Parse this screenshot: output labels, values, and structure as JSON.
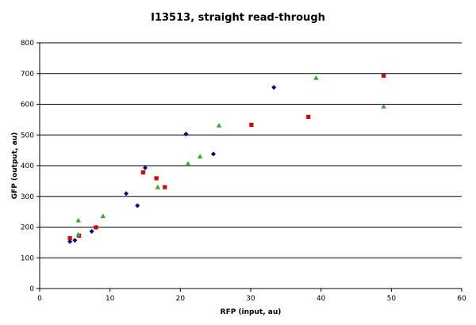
{
  "chart_data": {
    "type": "scatter",
    "title": "I13513, straight read-through",
    "xlabel": "RFP (input, au)",
    "ylabel": "GFP (output, au)",
    "xlim": [
      0,
      60
    ],
    "ylim": [
      0,
      800
    ],
    "xticks": [
      0,
      10,
      20,
      30,
      40,
      50,
      60
    ],
    "yticks": [
      0,
      100,
      200,
      300,
      400,
      500,
      600,
      700,
      800
    ],
    "grid": "horizontal",
    "legend": "none",
    "series": [
      {
        "marker": "diamond",
        "color": "#000080",
        "points": [
          [
            4.3,
            153
          ],
          [
            5.0,
            157
          ],
          [
            7.4,
            186
          ],
          [
            12.3,
            309
          ],
          [
            13.9,
            270
          ],
          [
            15.0,
            393
          ],
          [
            20.8,
            503
          ],
          [
            24.7,
            438
          ],
          [
            33.3,
            655
          ]
        ]
      },
      {
        "marker": "square",
        "color": "#dd0000",
        "points": [
          [
            4.3,
            164
          ],
          [
            5.6,
            172
          ],
          [
            8.0,
            199
          ],
          [
            14.7,
            378
          ],
          [
            16.6,
            359
          ],
          [
            17.8,
            330
          ],
          [
            30.1,
            533
          ],
          [
            38.2,
            559
          ],
          [
            48.9,
            693
          ]
        ]
      },
      {
        "marker": "triangle",
        "color": "#33aa33",
        "points": [
          [
            5.5,
            176
          ],
          [
            5.5,
            222
          ],
          [
            9.0,
            236
          ],
          [
            16.8,
            330
          ],
          [
            21.1,
            407
          ],
          [
            22.8,
            430
          ],
          [
            25.5,
            531
          ],
          [
            39.3,
            686
          ],
          [
            48.9,
            593
          ]
        ]
      }
    ]
  }
}
